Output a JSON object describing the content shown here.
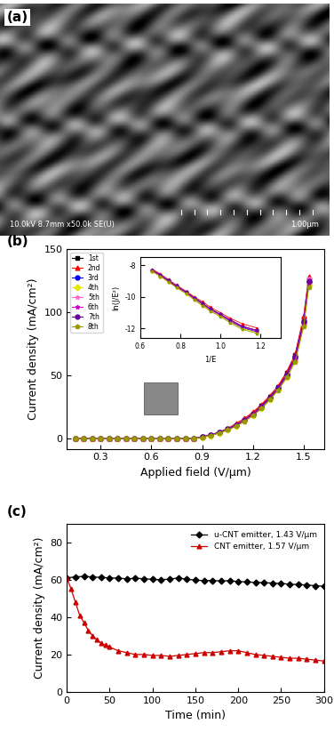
{
  "image": {
    "label": "(a)",
    "info": "10.0kV 8.7mm x50.0k SE(U)",
    "scale_bar": "1.00μm"
  },
  "chart_data": [
    {
      "type": "line",
      "label": "(b)",
      "x_label": "Applied field (V/μm)",
      "y_label": "Current density (mA/cm²)",
      "x": [
        0.15,
        0.2,
        0.25,
        0.3,
        0.35,
        0.4,
        0.45,
        0.5,
        0.55,
        0.6,
        0.65,
        0.7,
        0.75,
        0.8,
        0.85,
        0.9,
        0.95,
        1.0,
        1.05,
        1.1,
        1.15,
        1.2,
        1.25,
        1.3,
        1.35,
        1.4,
        1.45,
        1.5,
        1.53
      ],
      "series": [
        {
          "name": "1st",
          "color": "#000000",
          "marker": "square",
          "values": [
            0,
            0,
            0,
            0,
            0,
            0,
            0,
            0,
            0,
            0,
            0,
            0,
            0,
            0,
            0.5,
            1.5,
            3,
            5,
            8,
            11,
            15,
            20,
            26,
            33,
            41,
            52,
            66,
            95,
            126
          ]
        },
        {
          "name": "2nd",
          "color": "#ff0000",
          "marker": "triangle",
          "values": [
            0,
            0,
            0,
            0,
            0,
            0,
            0,
            0,
            0,
            0,
            0,
            0,
            0,
            0,
            0.5,
            1.5,
            3,
            5,
            8,
            12,
            16,
            21,
            27,
            34,
            42,
            53,
            67,
            97,
            128
          ]
        },
        {
          "name": "3rd",
          "color": "#0000ff",
          "marker": "circle",
          "values": [
            0,
            0,
            0,
            0,
            0,
            0,
            0,
            0,
            0,
            0,
            0,
            0,
            0,
            0,
            0.4,
            1.3,
            2.8,
            4.8,
            7.5,
            10.5,
            14.5,
            19,
            25,
            32,
            40,
            50,
            64,
            92,
            124
          ]
        },
        {
          "name": "4th",
          "color": "#e6e600",
          "marker": "diamond",
          "values": [
            0,
            0,
            0,
            0,
            0,
            0,
            0,
            0,
            0,
            0,
            0,
            0,
            0,
            0,
            0.3,
            1.2,
            2.6,
            4.5,
            7,
            10,
            14,
            18.5,
            24,
            31,
            39,
            49,
            62,
            90,
            122
          ]
        },
        {
          "name": "5th",
          "color": "#ff66cc",
          "marker": "star",
          "values": [
            0,
            0,
            0,
            0,
            0,
            0,
            0,
            0,
            0,
            0,
            0,
            0,
            0,
            0,
            0.4,
            1.4,
            3,
            5,
            7.8,
            11,
            15,
            19.5,
            25.5,
            32.5,
            40.5,
            51,
            65,
            94,
            127
          ]
        },
        {
          "name": "6th",
          "color": "#cc00cc",
          "marker": "star",
          "values": [
            0,
            0,
            0,
            0,
            0,
            0,
            0,
            0,
            0,
            0,
            0,
            0,
            0,
            0,
            0.3,
            1.2,
            2.7,
            4.6,
            7.2,
            10.2,
            14.2,
            18.8,
            24.5,
            31.5,
            39.5,
            49.5,
            63,
            91,
            123
          ]
        },
        {
          "name": "7th",
          "color": "#660099",
          "marker": "circle",
          "values": [
            0,
            0,
            0,
            0,
            0,
            0,
            0,
            0,
            0,
            0,
            0,
            0,
            0,
            0,
            0.4,
            1.3,
            2.9,
            4.9,
            7.6,
            10.8,
            14.8,
            19.5,
            25.5,
            32.5,
            40.5,
            51,
            65,
            93,
            125
          ]
        },
        {
          "name": "8th",
          "color": "#999900",
          "marker": "pentagon",
          "values": [
            0,
            0,
            0,
            0,
            0,
            0,
            0,
            0,
            0,
            0,
            0,
            0,
            0,
            0,
            0.3,
            1.1,
            2.5,
            4.4,
            6.9,
            9.8,
            13.8,
            18.2,
            23.8,
            30.8,
            38.5,
            48.5,
            61,
            89,
            120
          ]
        }
      ],
      "xlim": [
        0.1,
        1.62
      ],
      "xticks": [
        0.3,
        0.6,
        0.9,
        1.2,
        1.5
      ],
      "ylim": [
        -8,
        150
      ],
      "yticks": [
        0,
        50,
        100,
        150
      ],
      "legend": "upper left",
      "grid": false
    },
    {
      "type": "line",
      "x_label": "1/E",
      "y_label": "ln(J/E²)",
      "x": [
        0.66,
        0.7,
        0.74,
        0.78,
        0.83,
        0.87,
        0.91,
        0.95,
        1.0,
        1.05,
        1.11,
        1.18
      ],
      "series": [
        {
          "name": "1st",
          "color": "#000000",
          "marker": "square",
          "values": [
            -8.3,
            -8.6,
            -8.95,
            -9.3,
            -9.7,
            -10.05,
            -10.4,
            -10.75,
            -11.1,
            -11.5,
            -11.9,
            -12.1
          ]
        },
        {
          "name": "2nd",
          "color": "#ff0000",
          "marker": "triangle",
          "values": [
            -8.25,
            -8.55,
            -8.9,
            -9.25,
            -9.65,
            -10.0,
            -10.3,
            -10.65,
            -11.0,
            -11.35,
            -11.7,
            -11.95
          ]
        },
        {
          "name": "3rd",
          "color": "#0000ff",
          "marker": "circle",
          "values": [
            -8.35,
            -8.65,
            -9.0,
            -9.35,
            -9.75,
            -10.1,
            -10.45,
            -10.8,
            -11.15,
            -11.55,
            -11.95,
            -12.2
          ]
        },
        {
          "name": "4th",
          "color": "#e6e600",
          "marker": "diamond",
          "values": [
            -8.4,
            -8.7,
            -9.05,
            -9.4,
            -9.8,
            -10.15,
            -10.5,
            -10.85,
            -11.2,
            -11.6,
            -12.0,
            -12.25
          ]
        },
        {
          "name": "5th",
          "color": "#ff66cc",
          "marker": "star",
          "values": [
            -8.3,
            -8.6,
            -8.95,
            -9.3,
            -9.7,
            -10.05,
            -10.4,
            -10.75,
            -11.1,
            -11.45,
            -11.85,
            -12.1
          ]
        },
        {
          "name": "6th",
          "color": "#cc00cc",
          "marker": "star",
          "values": [
            -8.35,
            -8.65,
            -9.0,
            -9.35,
            -9.75,
            -10.1,
            -10.45,
            -10.8,
            -11.15,
            -11.5,
            -11.9,
            -12.15
          ]
        },
        {
          "name": "7th",
          "color": "#660099",
          "marker": "circle",
          "values": [
            -8.3,
            -8.6,
            -8.95,
            -9.3,
            -9.7,
            -10.05,
            -10.4,
            -10.75,
            -11.1,
            -11.45,
            -11.85,
            -12.1
          ]
        },
        {
          "name": "8th",
          "color": "#999900",
          "marker": "pentagon",
          "values": [
            -8.4,
            -8.7,
            -9.05,
            -9.4,
            -9.8,
            -10.2,
            -10.55,
            -10.9,
            -11.25,
            -11.65,
            -12.05,
            -12.3
          ]
        }
      ],
      "xlim": [
        0.6,
        1.3
      ],
      "xticks": [
        0.6,
        0.8,
        1.0,
        1.2
      ],
      "ylim": [
        -12.6,
        -7.5
      ],
      "yticks": [
        -12,
        -10,
        -8
      ],
      "grid": false
    },
    {
      "type": "line",
      "label": "(c)",
      "x_label": "Time (min)",
      "y_label": "Current density (mA/cm²)",
      "series": [
        {
          "name": "u-CNT emitter, 1.43 V/μm",
          "color": "#000000",
          "marker": "diamond",
          "x": [
            0,
            10,
            20,
            30,
            40,
            50,
            60,
            70,
            80,
            90,
            100,
            110,
            120,
            130,
            140,
            150,
            160,
            170,
            180,
            190,
            200,
            210,
            220,
            230,
            240,
            250,
            260,
            270,
            280,
            290,
            300
          ],
          "values": [
            61,
            61.5,
            61.8,
            61.5,
            61.2,
            61,
            60.8,
            60.5,
            60.8,
            60.5,
            60.2,
            60,
            60.3,
            61,
            60.2,
            59.8,
            59.5,
            59.6,
            59.3,
            59.5,
            59,
            58.8,
            58.6,
            58.4,
            58.2,
            58,
            57.6,
            57.4,
            57.2,
            56.8,
            56.5
          ]
        },
        {
          "name": "CNT emitter, 1.57 V/μm",
          "color": "#cc0000",
          "marker": "triangle",
          "x": [
            0,
            5,
            10,
            15,
            20,
            25,
            30,
            35,
            40,
            45,
            50,
            60,
            70,
            80,
            90,
            100,
            110,
            120,
            130,
            140,
            150,
            160,
            170,
            180,
            190,
            200,
            210,
            220,
            230,
            240,
            250,
            260,
            270,
            280,
            290,
            300
          ],
          "values": [
            61,
            55,
            48,
            41,
            37,
            33,
            30,
            28,
            26,
            25,
            24,
            22,
            21,
            20,
            20,
            19.5,
            19.5,
            19,
            19.5,
            20,
            20.5,
            21,
            21,
            21.5,
            22,
            22,
            21,
            20,
            19.5,
            19,
            18.5,
            18,
            18,
            17.5,
            17,
            16.5
          ]
        }
      ],
      "xlim": [
        0,
        300
      ],
      "xticks": [
        0,
        50,
        100,
        150,
        200,
        250,
        300
      ],
      "ylim": [
        0,
        90
      ],
      "yticks": [
        0,
        20,
        40,
        60,
        80
      ],
      "legend": "upper right",
      "grid": false
    }
  ]
}
